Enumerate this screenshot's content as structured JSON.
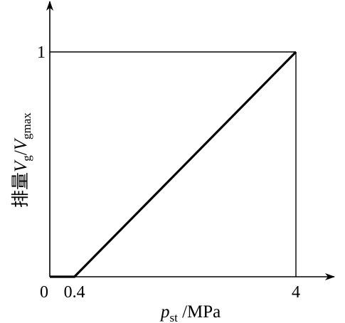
{
  "chart_data": {
    "type": "line",
    "x": [
      0,
      0.4,
      4
    ],
    "series": [
      {
        "values": [
          0,
          0,
          1
        ]
      }
    ],
    "xlim": [
      0,
      4.5
    ],
    "ylim": [
      0,
      1.15
    ],
    "x_ticks": [
      {
        "value": 0,
        "label": "0"
      },
      {
        "value": 0.4,
        "label": "0.4"
      },
      {
        "value": 4,
        "label": "4"
      }
    ],
    "y_ticks": [
      {
        "value": 1,
        "label": "1"
      }
    ],
    "xlabel": {
      "var": "p",
      "sub": "st",
      "unit": " /MPa"
    },
    "ylabel": {
      "prefix": "排量",
      "var1": "V",
      "sub1": "g",
      "sep": "/",
      "var2": "V",
      "sub2": "gmax"
    },
    "guides": [
      {
        "from": [
          0,
          1
        ],
        "to": [
          4,
          1
        ]
      },
      {
        "from": [
          4,
          0
        ],
        "to": [
          4,
          1
        ]
      }
    ],
    "grid": false,
    "legend": "none",
    "colors": {
      "line": "#000000",
      "axis": "#000000"
    }
  }
}
